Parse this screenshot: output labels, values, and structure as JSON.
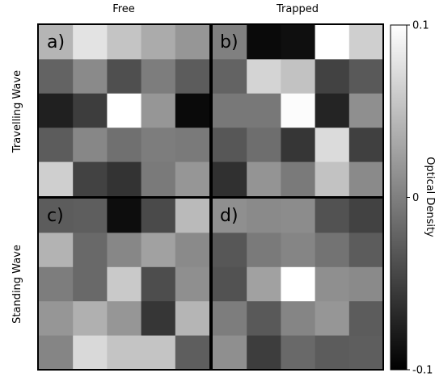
{
  "chart_data": {
    "type": "heatmap",
    "column_titles": [
      "Free",
      "Trapped"
    ],
    "row_titles": [
      "Travelling Wave",
      "Standing Wave"
    ],
    "colorbar": {
      "label": "Optical Density",
      "min": -0.1,
      "max": 0.1,
      "ticks": [
        {
          "value": 0.1,
          "label": "0.1"
        },
        {
          "value": 0,
          "label": "0"
        },
        {
          "value": -0.1,
          "label": "-0.1"
        }
      ],
      "colormap": "gray"
    },
    "panels": [
      {
        "label": "a)",
        "values": [
          [
            0.042,
            0.078,
            0.054,
            0.034,
            0.018
          ],
          [
            -0.022,
            0.008,
            -0.038,
            -0.002,
            -0.028
          ],
          [
            -0.075,
            -0.052,
            0.1,
            0.018,
            -0.092
          ],
          [
            -0.028,
            0.006,
            -0.012,
            -0.002,
            -0.004
          ],
          [
            0.062,
            -0.048,
            -0.06,
            -0.004,
            0.018
          ]
        ]
      },
      {
        "label": "b)",
        "values": [
          [
            0.0,
            -0.092,
            -0.088,
            0.1,
            0.062
          ],
          [
            -0.022,
            0.066,
            0.052,
            -0.048,
            -0.03
          ],
          [
            -0.006,
            -0.006,
            0.098,
            -0.072,
            0.012
          ],
          [
            -0.032,
            -0.014,
            -0.058,
            0.072,
            -0.05
          ],
          [
            -0.062,
            0.016,
            -0.004,
            0.052,
            0.008
          ]
        ]
      },
      {
        "label": "c)",
        "values": [
          [
            -0.028,
            -0.026,
            -0.09,
            -0.042,
            0.046
          ],
          [
            0.04,
            -0.018,
            0.006,
            0.026,
            0.008
          ],
          [
            -0.002,
            -0.018,
            0.058,
            -0.04,
            0.012
          ],
          [
            0.018,
            0.038,
            0.018,
            -0.058,
            0.042
          ],
          [
            0.004,
            0.07,
            0.054,
            0.054,
            -0.026
          ]
        ]
      },
      {
        "label": "d)",
        "values": [
          [
            0.012,
            0.008,
            0.01,
            -0.036,
            -0.048
          ],
          [
            -0.032,
            -0.004,
            0.004,
            -0.01,
            -0.028
          ],
          [
            -0.036,
            0.026,
            0.1,
            0.012,
            0.008
          ],
          [
            -0.002,
            -0.03,
            0.004,
            0.018,
            -0.028
          ],
          [
            0.012,
            -0.052,
            -0.018,
            -0.028,
            -0.026
          ]
        ]
      }
    ]
  }
}
